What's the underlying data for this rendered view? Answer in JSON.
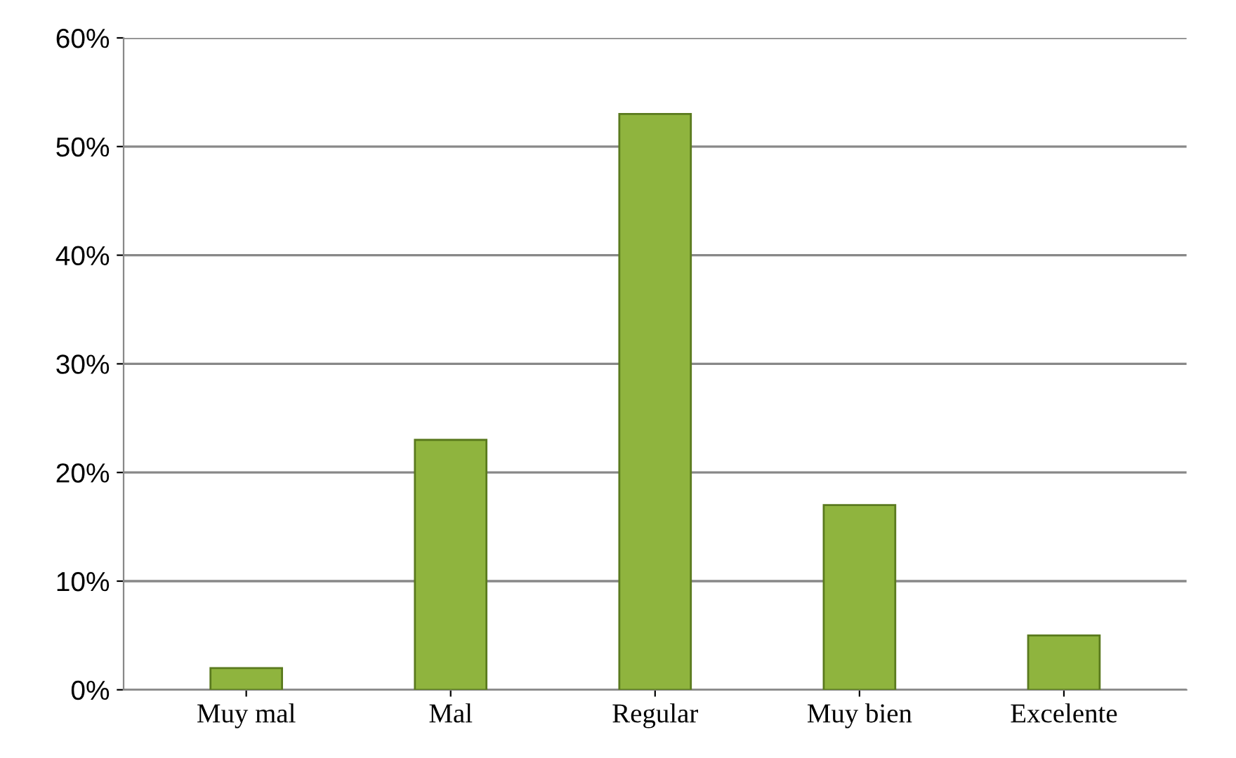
{
  "chart_data": {
    "type": "bar",
    "categories": [
      "Muy mal",
      "Mal",
      "Regular",
      "Muy bien",
      "Excelente"
    ],
    "values": [
      0.02,
      0.23,
      0.53,
      0.17,
      0.05
    ],
    "color": "#8fb43e",
    "ylim": [
      0,
      0.6
    ],
    "yticks": [
      {
        "value": 0,
        "label": "0%"
      },
      {
        "value": 0.1,
        "label": "10%"
      },
      {
        "value": 0.2,
        "label": "20%"
      },
      {
        "value": 0.3,
        "label": "30%"
      },
      {
        "value": 0.4,
        "label": "40%"
      },
      {
        "value": 0.5,
        "label": "50%"
      },
      {
        "value": 0.6,
        "label": "60%"
      }
    ],
    "grid": "y",
    "legend": false
  }
}
